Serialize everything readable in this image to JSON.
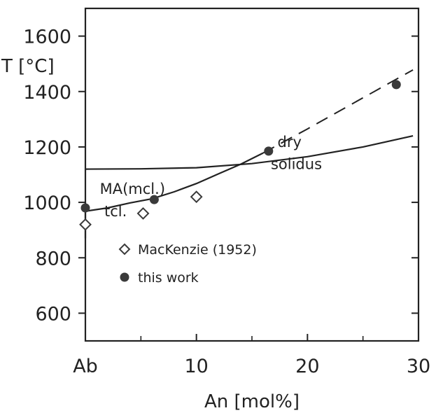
{
  "chart_data": {
    "type": "scatter",
    "xlabel": "An [mol%]",
    "ylabel": "T [°C]",
    "xlim": [
      0,
      30
    ],
    "ylim": [
      500,
      1700
    ],
    "x_ticks": [
      {
        "value": 0,
        "label": "Ab"
      },
      {
        "value": 10,
        "label": "10"
      },
      {
        "value": 20,
        "label": "20"
      },
      {
        "value": 30,
        "label": "30"
      }
    ],
    "y_ticks": [
      {
        "value": 600,
        "label": "600"
      },
      {
        "value": 800,
        "label": "800"
      },
      {
        "value": 1000,
        "label": "1000"
      },
      {
        "value": 1200,
        "label": "1200"
      },
      {
        "value": 1400,
        "label": "1400"
      },
      {
        "value": 1600,
        "label": "1600"
      }
    ],
    "grid": false,
    "series": [
      {
        "name": "MacKenzie (1952)",
        "marker": "diamond-open",
        "points": [
          [
            0,
            920
          ],
          [
            5.2,
            960
          ],
          [
            10,
            1020
          ]
        ]
      },
      {
        "name": "this work",
        "marker": "circle-filled",
        "points": [
          [
            0,
            980
          ],
          [
            6.2,
            1010
          ],
          [
            16.5,
            1185
          ],
          [
            28,
            1425
          ]
        ]
      }
    ],
    "curves": [
      {
        "label": [
          "dry",
          "solidus"
        ],
        "style": "solid",
        "points": [
          [
            0,
            1120
          ],
          [
            5,
            1121
          ],
          [
            10,
            1125
          ],
          [
            15,
            1140
          ],
          [
            20,
            1165
          ],
          [
            25,
            1200
          ],
          [
            29.5,
            1240
          ]
        ]
      },
      {
        "label": "MA(mcl.)",
        "style": "solid",
        "points": [
          [
            0,
            968
          ],
          [
            2,
            980
          ],
          [
            4,
            998
          ],
          [
            6,
            1013
          ],
          [
            8,
            1038
          ],
          [
            10,
            1068
          ],
          [
            12,
            1103
          ],
          [
            14,
            1138
          ],
          [
            16,
            1178
          ]
        ]
      },
      {
        "style": "dashed",
        "points": [
          [
            16,
            1178
          ],
          [
            20,
            1265
          ],
          [
            24,
            1355
          ],
          [
            29.5,
            1478
          ]
        ]
      },
      {
        "style": "solid",
        "points": [
          [
            0,
            870
          ],
          [
            0,
            1000
          ]
        ]
      }
    ],
    "annotations": [
      {
        "text": "MA(mcl.)",
        "x": 1.3,
        "y": 1030
      },
      {
        "text": "tcl.",
        "x": 1.7,
        "y": 950
      },
      {
        "text": "dry",
        "x": 17.3,
        "y": 1200
      },
      {
        "text": "solidus",
        "x": 16.7,
        "y": 1120
      }
    ],
    "legend": {
      "position": "center-left",
      "entries": [
        {
          "marker": "diamond-open",
          "text": "MacKenzie (1952)"
        },
        {
          "marker": "circle-filled",
          "text": "this work"
        }
      ]
    },
    "colors": {
      "ink": "#222222",
      "marker": "#3a3a3a"
    }
  }
}
